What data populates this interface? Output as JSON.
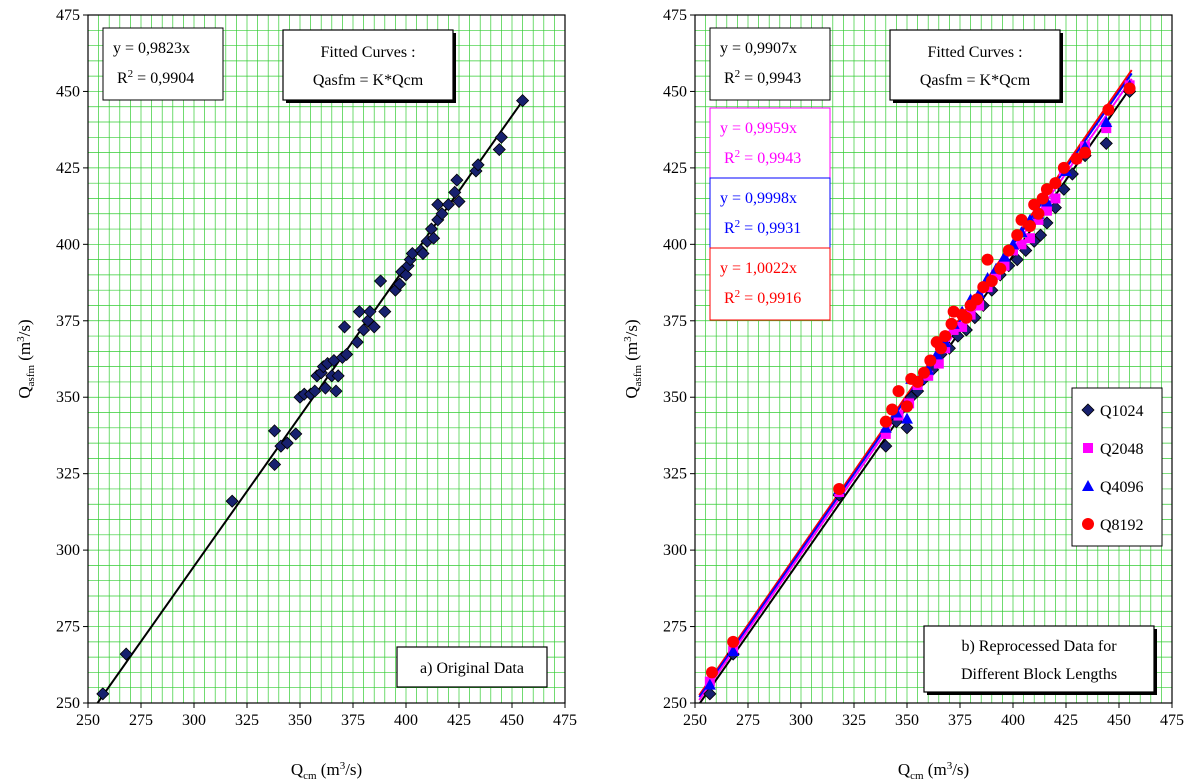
{
  "chart_data": [
    {
      "type": "scatter",
      "xlabel": {
        "main": "Q",
        "sub": "cm",
        "unit_pre": " (m",
        "unit_sup": "3",
        "unit_post": "/s)"
      },
      "ylabel": {
        "main": "Q",
        "sub": "asfm",
        "unit_pre": "  (m",
        "unit_sup": "3",
        "unit_post": "/s)"
      },
      "xlim": [
        250,
        475
      ],
      "ylim": [
        250,
        475
      ],
      "xticks": [
        250,
        275,
        300,
        325,
        350,
        375,
        400,
        425,
        450,
        475
      ],
      "yticks": [
        250,
        275,
        300,
        325,
        350,
        375,
        400,
        425,
        450,
        475
      ],
      "grid": true,
      "fit_box": {
        "line1": "Fitted Curves :",
        "line2": "Qasfm = K*Qcm"
      },
      "equations": [
        {
          "eq": "y = 0,9823x",
          "r2_pre": "R",
          "r2_sup": "2",
          "r2_post": " = 0,9904",
          "slope": 0.9823,
          "color": "#000000"
        }
      ],
      "caption": "a) Original Data",
      "series": [
        {
          "marker": "diamond",
          "color": "#17206e",
          "points": [
            [
              257,
              253
            ],
            [
              268,
              266
            ],
            [
              318,
              316
            ],
            [
              338,
              339
            ],
            [
              338,
              328
            ],
            [
              341,
              334
            ],
            [
              344,
              335
            ],
            [
              348,
              338
            ],
            [
              350,
              350
            ],
            [
              352,
              351
            ],
            [
              355,
              351
            ],
            [
              357,
              352
            ],
            [
              358,
              357
            ],
            [
              360,
              358
            ],
            [
              361,
              360
            ],
            [
              362,
              353
            ],
            [
              363,
              361
            ],
            [
              365,
              357
            ],
            [
              366,
              362
            ],
            [
              367,
              352
            ],
            [
              368,
              357
            ],
            [
              370,
              363
            ],
            [
              371,
              373
            ],
            [
              372,
              364
            ],
            [
              377,
              368
            ],
            [
              378,
              378
            ],
            [
              380,
              372
            ],
            [
              382,
              375
            ],
            [
              383,
              378
            ],
            [
              385,
              373
            ],
            [
              388,
              388
            ],
            [
              390,
              378
            ],
            [
              395,
              385
            ],
            [
              397,
              387
            ],
            [
              398,
              391
            ],
            [
              400,
              390
            ],
            [
              401,
              393
            ],
            [
              402,
              395
            ],
            [
              403,
              397
            ],
            [
              407,
              398
            ],
            [
              408,
              397
            ],
            [
              410,
              401
            ],
            [
              412,
              405
            ],
            [
              413,
              402
            ],
            [
              415,
              408
            ],
            [
              415,
              413
            ],
            [
              417,
              410
            ],
            [
              420,
              413
            ],
            [
              423,
              417
            ],
            [
              424,
              421
            ],
            [
              425,
              414
            ],
            [
              433,
              424
            ],
            [
              434,
              426
            ],
            [
              444,
              431
            ],
            [
              445,
              435
            ],
            [
              455,
              447
            ]
          ]
        }
      ]
    },
    {
      "type": "scatter",
      "xlabel": {
        "main": "Q",
        "sub": "cm",
        "unit_pre": " (m",
        "unit_sup": "3",
        "unit_post": "/s)"
      },
      "ylabel": {
        "main": "Q",
        "sub": "asfm",
        "unit_pre": "  (m",
        "unit_sup": "3",
        "unit_post": "/s)"
      },
      "xlim": [
        250,
        475
      ],
      "ylim": [
        250,
        475
      ],
      "xticks": [
        250,
        275,
        300,
        325,
        350,
        375,
        400,
        425,
        450,
        475
      ],
      "yticks": [
        250,
        275,
        300,
        325,
        350,
        375,
        400,
        425,
        450,
        475
      ],
      "grid": true,
      "fit_box": {
        "line1": "Fitted Curves :",
        "line2": "Qasfm = K*Qcm"
      },
      "equations": [
        {
          "eq": "y = 0,9907x",
          "r2_pre": "R",
          "r2_sup": "2",
          "r2_post": " = 0,9943",
          "slope": 0.9907,
          "color": "#000000"
        },
        {
          "eq": "y = 0,9959x",
          "r2_pre": "R",
          "r2_sup": "2",
          "r2_post": " = 0,9943",
          "slope": 0.9959,
          "color": "#ff00ff"
        },
        {
          "eq": "y = 0,9998x",
          "r2_pre": "R",
          "r2_sup": "2",
          "r2_post": " = 0,9931",
          "slope": 0.9998,
          "color": "#0000ff"
        },
        {
          "eq": "y = 1,0022x",
          "r2_pre": "R",
          "r2_sup": "2",
          "r2_post": " = 0,9916",
          "slope": 1.0022,
          "color": "#ff0000"
        }
      ],
      "caption": "b) Reprocessed Data for",
      "caption2": "Different Block Lengths",
      "legend_position": "bottom-right",
      "series": [
        {
          "name": "Q1024",
          "marker": "diamond",
          "color": "#17206e",
          "points": [
            [
              257,
              253
            ],
            [
              268,
              266
            ],
            [
              318,
              318
            ],
            [
              340,
              334
            ],
            [
              345,
              342
            ],
            [
              350,
              340
            ],
            [
              352,
              350
            ],
            [
              355,
              352
            ],
            [
              358,
              356
            ],
            [
              362,
              359
            ],
            [
              366,
              364
            ],
            [
              370,
              366
            ],
            [
              374,
              370
            ],
            [
              378,
              372
            ],
            [
              382,
              376
            ],
            [
              386,
              380
            ],
            [
              390,
              385
            ],
            [
              394,
              390
            ],
            [
              398,
              393
            ],
            [
              402,
              395
            ],
            [
              406,
              398
            ],
            [
              410,
              401
            ],
            [
              413,
              403
            ],
            [
              416,
              407
            ],
            [
              420,
              412
            ],
            [
              424,
              418
            ],
            [
              428,
              423
            ],
            [
              434,
              429
            ],
            [
              444,
              433
            ],
            [
              455,
              450
            ]
          ]
        },
        {
          "name": "Q2048",
          "marker": "square",
          "color": "#ff00ff",
          "points": [
            [
              257,
              257
            ],
            [
              268,
              267
            ],
            [
              318,
              319
            ],
            [
              340,
              338
            ],
            [
              346,
              344
            ],
            [
              351,
              348
            ],
            [
              355,
              354
            ],
            [
              360,
              357
            ],
            [
              365,
              361
            ],
            [
              368,
              366
            ],
            [
              372,
              372
            ],
            [
              376,
              373
            ],
            [
              380,
              377
            ],
            [
              384,
              380
            ],
            [
              388,
              386
            ],
            [
              392,
              390
            ],
            [
              396,
              393
            ],
            [
              400,
              398
            ],
            [
              404,
              400
            ],
            [
              408,
              402
            ],
            [
              412,
              408
            ],
            [
              416,
              411
            ],
            [
              420,
              415
            ],
            [
              424,
              424
            ],
            [
              430,
              428
            ],
            [
              434,
              432
            ],
            [
              444,
              438
            ],
            [
              455,
              452
            ]
          ]
        },
        {
          "name": "Q4096",
          "marker": "triangle",
          "color": "#0000ff",
          "points": [
            [
              257,
              256
            ],
            [
              268,
              267
            ],
            [
              318,
              320
            ],
            [
              340,
              340
            ],
            [
              345,
              345
            ],
            [
              350,
              343
            ],
            [
              352,
              356
            ],
            [
              356,
              356
            ],
            [
              360,
              359
            ],
            [
              364,
              364
            ],
            [
              368,
              368
            ],
            [
              372,
              374
            ],
            [
              376,
              378
            ],
            [
              380,
              382
            ],
            [
              384,
              384
            ],
            [
              388,
              389
            ],
            [
              392,
              392
            ],
            [
              396,
              396
            ],
            [
              400,
              400
            ],
            [
              404,
              404
            ],
            [
              408,
              408
            ],
            [
              412,
              410
            ],
            [
              416,
              414
            ],
            [
              420,
              420
            ],
            [
              425,
              424
            ],
            [
              434,
              432
            ],
            [
              444,
              440
            ],
            [
              455,
              452
            ]
          ]
        },
        {
          "name": "Q8192",
          "marker": "circle",
          "color": "#ff0000",
          "points": [
            [
              258,
              260
            ],
            [
              268,
              270
            ],
            [
              318,
              320
            ],
            [
              340,
              342
            ],
            [
              343,
              346
            ],
            [
              346,
              352
            ],
            [
              350,
              347
            ],
            [
              352,
              356
            ],
            [
              355,
              355
            ],
            [
              358,
              358
            ],
            [
              361,
              362
            ],
            [
              364,
              368
            ],
            [
              366,
              366
            ],
            [
              368,
              370
            ],
            [
              371,
              374
            ],
            [
              372,
              378
            ],
            [
              376,
              377
            ],
            [
              378,
              376
            ],
            [
              380,
              380
            ],
            [
              383,
              382
            ],
            [
              386,
              386
            ],
            [
              388,
              395
            ],
            [
              390,
              388
            ],
            [
              394,
              392
            ],
            [
              398,
              398
            ],
            [
              402,
              403
            ],
            [
              404,
              408
            ],
            [
              408,
              406
            ],
            [
              410,
              413
            ],
            [
              412,
              410
            ],
            [
              414,
              415
            ],
            [
              416,
              418
            ],
            [
              420,
              420
            ],
            [
              424,
              425
            ],
            [
              430,
              428
            ],
            [
              434,
              430
            ],
            [
              445,
              444
            ],
            [
              455,
              451
            ]
          ]
        }
      ]
    }
  ]
}
